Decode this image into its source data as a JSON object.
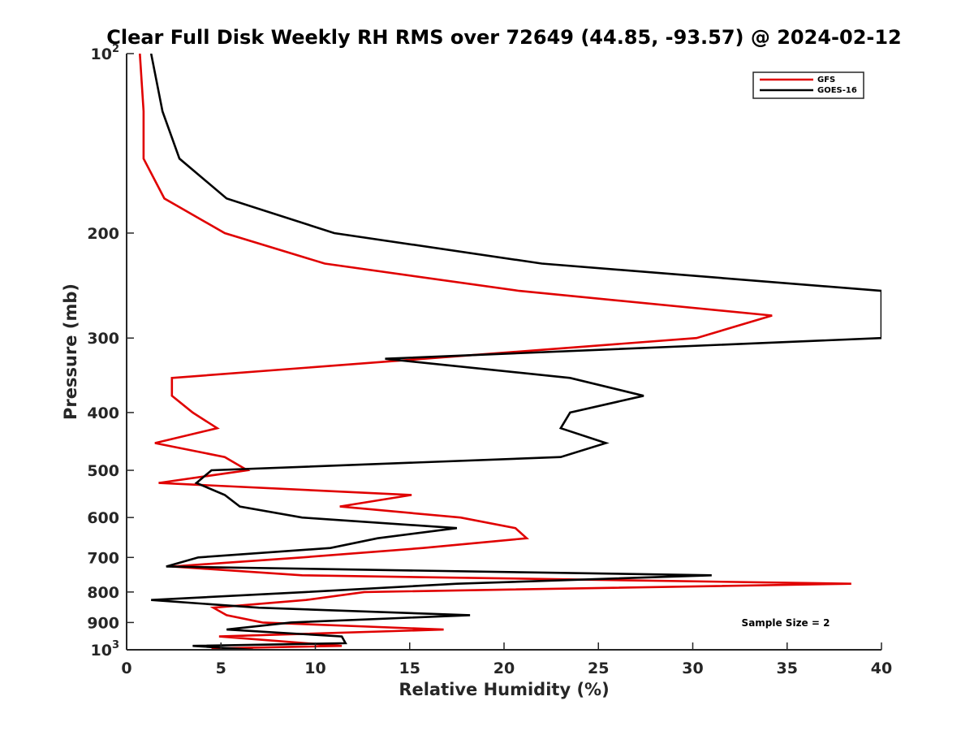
{
  "chart_data": {
    "type": "line",
    "title": "Clear Full Disk Weekly RH RMS over 72649 (44.85, -93.57) @ 2024-02-12",
    "xlabel": "Relative Humidity (%)",
    "ylabel": "Pressure (mb)",
    "xlim": [
      0,
      40
    ],
    "ylim": [
      100,
      1000
    ],
    "y_scale": "log",
    "y_reversed": true,
    "grid": false,
    "legend_position": "top-right",
    "x_ticks": [
      "0",
      "5",
      "10",
      "15",
      "20",
      "25",
      "30",
      "35",
      "40"
    ],
    "y_ticks": [
      {
        "value": 100,
        "label": "10",
        "sup": "2"
      },
      {
        "value": 200,
        "label": "200"
      },
      {
        "value": 300,
        "label": "300"
      },
      {
        "value": 400,
        "label": "400"
      },
      {
        "value": 500,
        "label": "500"
      },
      {
        "value": 600,
        "label": "600"
      },
      {
        "value": 700,
        "label": "700"
      },
      {
        "value": 800,
        "label": "800"
      },
      {
        "value": 900,
        "label": "900"
      },
      {
        "value": 1000,
        "label": "10",
        "sup": "3"
      }
    ],
    "annotation": "Sample Size = 2",
    "series": [
      {
        "name": "GFS",
        "color": "#e00000",
        "points": [
          [
            0.7,
            100
          ],
          [
            0.9,
            125
          ],
          [
            0.9,
            150
          ],
          [
            2.0,
            175
          ],
          [
            5.2,
            200
          ],
          [
            10.5,
            225
          ],
          [
            20.8,
            250
          ],
          [
            34.2,
            275
          ],
          [
            30.2,
            300
          ],
          [
            2.4,
            350
          ],
          [
            2.4,
            375
          ],
          [
            3.5,
            400
          ],
          [
            4.8,
            425
          ],
          [
            1.5,
            450
          ],
          [
            5.2,
            475
          ],
          [
            6.4,
            500
          ],
          [
            1.7,
            525
          ],
          [
            15.1,
            550
          ],
          [
            11.3,
            575
          ],
          [
            17.7,
            600
          ],
          [
            20.6,
            625
          ],
          [
            21.2,
            650
          ],
          [
            15.7,
            675
          ],
          [
            9.3,
            700
          ],
          [
            2.4,
            725
          ],
          [
            9.3,
            750
          ],
          [
            38.4,
            775
          ],
          [
            12.6,
            800
          ],
          [
            9.5,
            825
          ],
          [
            4.6,
            850
          ],
          [
            5.3,
            875
          ],
          [
            7.2,
            900
          ],
          [
            16.8,
            925
          ],
          [
            4.9,
            950
          ],
          [
            9.5,
            975
          ],
          [
            11.4,
            985
          ],
          [
            4.5,
            995
          ],
          [
            6.0,
            1000
          ]
        ]
      },
      {
        "name": "GOES-16",
        "color": "#000000",
        "points": [
          [
            1.3,
            100
          ],
          [
            1.9,
            125
          ],
          [
            2.8,
            150
          ],
          [
            5.3,
            175
          ],
          [
            11.0,
            200
          ],
          [
            22.0,
            225
          ],
          [
            40.0,
            250
          ],
          [
            40.0,
            300
          ],
          [
            13.7,
            325
          ],
          [
            23.5,
            350
          ],
          [
            27.4,
            375
          ],
          [
            23.5,
            400
          ],
          [
            23.0,
            425
          ],
          [
            25.4,
            450
          ],
          [
            23.0,
            475
          ],
          [
            4.5,
            500
          ],
          [
            3.7,
            525
          ],
          [
            5.2,
            550
          ],
          [
            6.0,
            575
          ],
          [
            9.3,
            600
          ],
          [
            17.5,
            625
          ],
          [
            13.3,
            650
          ],
          [
            10.8,
            675
          ],
          [
            3.8,
            700
          ],
          [
            2.1,
            725
          ],
          [
            31.0,
            750
          ],
          [
            17.5,
            775
          ],
          [
            9.5,
            800
          ],
          [
            1.3,
            825
          ],
          [
            7.0,
            850
          ],
          [
            18.2,
            875
          ],
          [
            8.7,
            900
          ],
          [
            5.3,
            925
          ],
          [
            11.4,
            950
          ],
          [
            11.6,
            975
          ],
          [
            3.5,
            985
          ],
          [
            6.7,
            1000
          ]
        ]
      }
    ]
  }
}
